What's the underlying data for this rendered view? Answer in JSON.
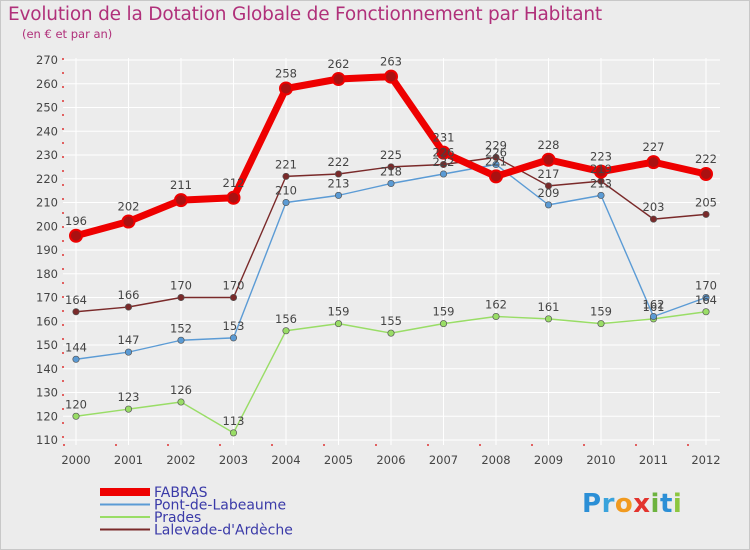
{
  "header": {
    "title": "Evolution de la Dotation Globale de Fonctionnement par Habitant",
    "subtitle": "(en € et par an)"
  },
  "logo": {
    "text": "Proxiti",
    "letters": [
      "P",
      "r",
      "o",
      "x",
      "i",
      "t",
      "i"
    ]
  },
  "chart_data": {
    "type": "line",
    "title": "Evolution de la Dotation Globale de Fonctionnement par Habitant",
    "subtitle": "(en € et par an)",
    "xlabel": "",
    "ylabel": "",
    "ylim": [
      110,
      270
    ],
    "y_ticks": [
      110,
      120,
      130,
      140,
      150,
      160,
      170,
      180,
      190,
      200,
      210,
      220,
      230,
      240,
      250,
      260,
      270
    ],
    "grid": true,
    "legend_position": "bottom-left",
    "categories": [
      "2000",
      "2001",
      "2002",
      "2003",
      "2004",
      "2005",
      "2006",
      "2007",
      "2008",
      "2009",
      "2010",
      "2011",
      "2012"
    ],
    "series": [
      {
        "name": "Lalevade-d'Ardèche",
        "color": "#7a2a2a",
        "values": [
          164,
          166,
          170,
          170,
          221,
          222,
          225,
          226,
          229,
          217,
          219,
          203,
          205
        ],
        "labels": [
          "164",
          "166",
          "170",
          "170",
          "221",
          "222",
          "225",
          "226",
          "229",
          "217",
          "219",
          "203",
          "205"
        ]
      },
      {
        "name": "Prades",
        "color": "#99dd66",
        "values": [
          120,
          123,
          126,
          113,
          156,
          159,
          155,
          159,
          162,
          161,
          159,
          161,
          164
        ],
        "labels": [
          "120",
          "123",
          "126",
          "113",
          "156",
          "159",
          "155",
          "159",
          "162",
          "161",
          "159",
          "161",
          "164"
        ]
      },
      {
        "name": "Pont-de-Labeaume",
        "color": "#5b9bd5",
        "values": [
          144,
          147,
          152,
          153,
          210,
          213,
          218,
          222,
          226,
          209,
          213,
          162,
          170
        ],
        "labels": [
          "144",
          "147",
          "152",
          "153",
          "210",
          "213",
          "218",
          "222",
          "226",
          "209",
          "213",
          "162",
          "170"
        ]
      },
      {
        "name": "FABRAS",
        "color": "#ee0000",
        "values": [
          196,
          202,
          211,
          212,
          258,
          262,
          263,
          231,
          221,
          228,
          223,
          227,
          222
        ],
        "labels": [
          "196",
          "202",
          "211",
          "212",
          "258",
          "262",
          "263",
          "231",
          "221",
          "228",
          "223",
          "227",
          "222"
        ]
      }
    ],
    "legend": [
      "FABRAS",
      "Pont-de-Labeaume",
      "Prades",
      "Lalevade-d'Ardèche"
    ]
  }
}
